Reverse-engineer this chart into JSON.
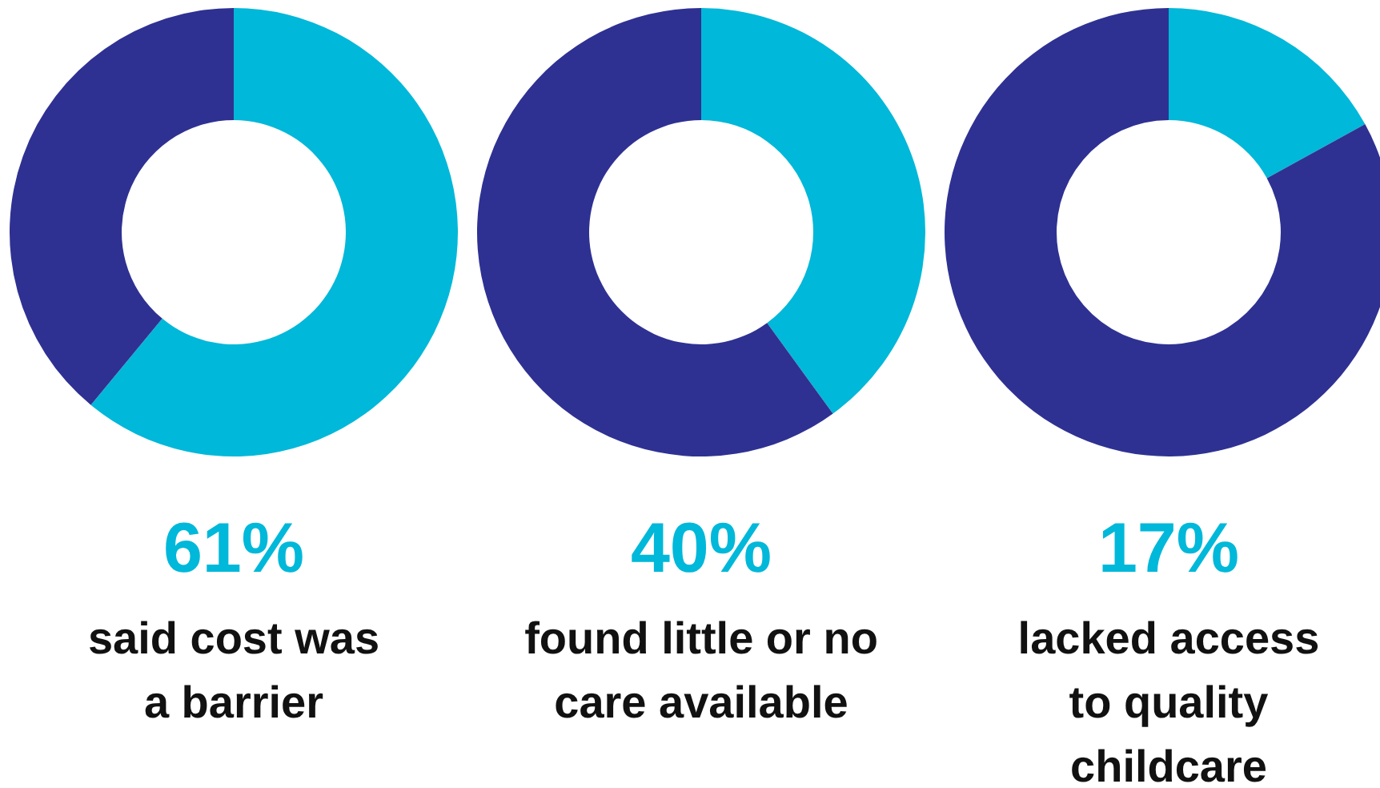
{
  "chart_data": [
    {
      "type": "donut",
      "categories": [
        null,
        null
      ],
      "values": [
        61,
        39
      ],
      "colors": [
        "#00b8d9",
        "#2e3192"
      ],
      "title": "61%",
      "annotations": [
        "said cost was",
        "a barrier"
      ]
    },
    {
      "type": "donut",
      "categories": [
        null,
        null
      ],
      "values": [
        40,
        60
      ],
      "colors": [
        "#00b8d9",
        "#2e3192"
      ],
      "title": "40%",
      "annotations": [
        "found little or no",
        "care available"
      ]
    },
    {
      "type": "donut",
      "categories": [
        null,
        null
      ],
      "values": [
        17,
        83
      ],
      "colors": [
        "#00b8d9",
        "#2e3192"
      ],
      "title": "17%",
      "annotations": [
        "lacked access",
        "to quality",
        "childcare"
      ]
    }
  ]
}
